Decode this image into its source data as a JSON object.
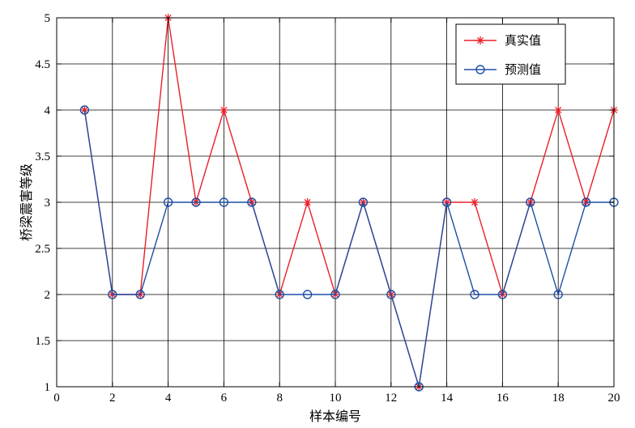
{
  "chart_data": {
    "type": "line",
    "title": "",
    "xlabel": "样本编号",
    "ylabel": "桥梁震害等级",
    "xlim": [
      0,
      20
    ],
    "ylim": [
      1,
      5
    ],
    "xticks": [
      0,
      2,
      4,
      6,
      8,
      10,
      12,
      14,
      16,
      18,
      20
    ],
    "yticks": [
      1,
      1.5,
      2,
      2.5,
      3,
      3.5,
      4,
      4.5,
      5
    ],
    "grid": true,
    "legend_position": "top-right",
    "x": [
      1,
      2,
      3,
      4,
      5,
      6,
      7,
      8,
      9,
      10,
      11,
      12,
      13,
      14,
      15,
      16,
      17,
      18,
      19,
      20
    ],
    "series": [
      {
        "name": "真实值",
        "color": "#e8202a",
        "marker": "asterisk",
        "values": [
          4,
          2,
          2,
          5,
          3,
          4,
          3,
          2,
          3,
          2,
          3,
          2,
          1,
          3,
          3,
          2,
          3,
          4,
          3,
          4
        ]
      },
      {
        "name": "预测值",
        "color": "#1f4fa3",
        "marker": "circle",
        "values": [
          4,
          2,
          2,
          3,
          3,
          3,
          3,
          2,
          2,
          2,
          3,
          2,
          1,
          3,
          2,
          2,
          3,
          2,
          3,
          3
        ]
      }
    ]
  }
}
